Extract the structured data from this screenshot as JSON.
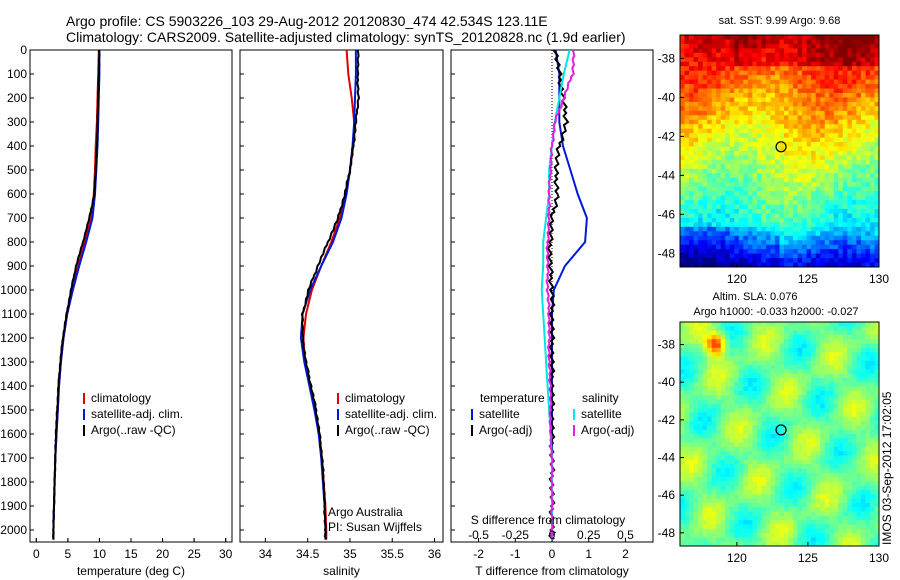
{
  "header": {
    "line1": "Argo profile: CS 5903226_103 29-Aug-2012 20120830_474 42.534S 123.11E",
    "line2": "Climatology: CARS2009. Satellite-adjusted climatology: synTS_20120828.nc (1.9d earlier)"
  },
  "credit": "IMOS 03-Sep-2012 17:02:05",
  "colors": {
    "climatology": "#e00000",
    "satellite": "#0018d8",
    "argo": "#000000",
    "sal_satellite": "#00e5e5",
    "sal_argo": "#e020e0"
  },
  "chart_data": [
    {
      "type": "line",
      "xlabel": "temperature (deg C)",
      "ylabel": "",
      "xlim": [
        -1,
        31
      ],
      "ylim": [
        2050,
        0
      ],
      "xticks": [
        0,
        5,
        10,
        15,
        20,
        25,
        30
      ],
      "yticks": [
        0,
        100,
        200,
        300,
        400,
        500,
        600,
        700,
        800,
        900,
        1000,
        1100,
        1200,
        1300,
        1400,
        1500,
        1600,
        1700,
        1800,
        1900,
        2000
      ],
      "legend": [
        "climatology",
        "satellite-adj. clim.",
        "Argo(..raw -QC)"
      ],
      "series": [
        {
          "name": "climatology",
          "depth": [
            0,
            100,
            200,
            300,
            400,
            500,
            600,
            700,
            800,
            900,
            1000,
            1100,
            1200,
            1300,
            1400,
            1500,
            1600,
            1700,
            1800,
            1900,
            2000,
            2040
          ],
          "values": [
            9.9,
            9.8,
            9.7,
            9.6,
            9.4,
            9.3,
            9.1,
            8.7,
            7.7,
            6.6,
            5.7,
            4.9,
            4.3,
            3.9,
            3.6,
            3.4,
            3.2,
            3.0,
            2.9,
            2.8,
            2.7,
            2.7
          ]
        },
        {
          "name": "satellite-adj. clim.",
          "depth": [
            0,
            100,
            200,
            300,
            400,
            500,
            600,
            700,
            800,
            900,
            1000,
            1100,
            1200,
            1300,
            1400,
            1500,
            1600,
            1700,
            1800,
            1900,
            2000,
            2040
          ],
          "values": [
            10.0,
            10.0,
            9.9,
            9.8,
            9.7,
            9.5,
            9.3,
            8.9,
            7.9,
            6.8,
            5.8,
            4.9,
            4.3,
            3.9,
            3.6,
            3.4,
            3.2,
            3.0,
            2.9,
            2.8,
            2.7,
            2.7
          ]
        },
        {
          "name": "Argo(..raw -QC)",
          "depth": [
            0,
            100,
            200,
            300,
            400,
            500,
            600,
            700,
            800,
            900,
            1000,
            1100,
            1200,
            1300,
            1400,
            1500,
            1600,
            1700,
            1800,
            1900,
            2000,
            2040
          ],
          "values": [
            10.0,
            9.9,
            9.8,
            9.7,
            9.6,
            9.4,
            9.2,
            8.4,
            7.4,
            6.3,
            5.5,
            4.8,
            4.2,
            3.8,
            3.5,
            3.3,
            3.1,
            3.0,
            2.9,
            2.8,
            2.7,
            2.7
          ]
        }
      ]
    },
    {
      "type": "line",
      "xlabel": "salinity",
      "ylabel": "",
      "xlim": [
        33.7,
        36.1
      ],
      "ylim": [
        2050,
        0
      ],
      "xticks": [
        34,
        34.5,
        35,
        35.5,
        36
      ],
      "legend": [
        "climatology",
        "satellite-adj. clim.",
        "Argo(..raw -QC)"
      ],
      "annotation": [
        "Argo Australia",
        "PI: Susan Wijffels"
      ],
      "series": [
        {
          "name": "climatology",
          "depth": [
            0,
            100,
            200,
            300,
            400,
            500,
            600,
            700,
            800,
            900,
            1000,
            1100,
            1200,
            1300,
            1400,
            1500,
            1600,
            1700,
            1800,
            1900,
            2000,
            2040
          ],
          "values": [
            34.96,
            34.98,
            35.02,
            35.05,
            35.04,
            35.0,
            34.95,
            34.88,
            34.78,
            34.66,
            34.55,
            34.48,
            34.45,
            34.47,
            34.53,
            34.59,
            34.64,
            34.67,
            34.69,
            34.71,
            34.72,
            34.72
          ]
        },
        {
          "name": "satellite-adj. clim.",
          "depth": [
            0,
            100,
            200,
            300,
            400,
            500,
            600,
            700,
            800,
            900,
            1000,
            1100,
            1200,
            1300,
            1400,
            1500,
            1600,
            1700,
            1800,
            1900,
            2000,
            2040
          ],
          "values": [
            35.07,
            35.07,
            35.06,
            35.05,
            35.03,
            35.0,
            34.96,
            34.9,
            34.8,
            34.66,
            34.53,
            34.44,
            34.42,
            34.46,
            34.52,
            34.58,
            34.63,
            34.66,
            34.68,
            34.7,
            34.71,
            34.71
          ]
        },
        {
          "name": "Argo(..raw -QC)",
          "depth": [
            0,
            100,
            200,
            300,
            400,
            500,
            600,
            700,
            800,
            900,
            1000,
            1100,
            1200,
            1300,
            1400,
            1500,
            1600,
            1700,
            1800,
            1900,
            2000,
            2040
          ],
          "values": [
            35.1,
            35.09,
            35.1,
            35.07,
            35.04,
            35.0,
            34.94,
            34.86,
            34.74,
            34.62,
            34.51,
            34.44,
            34.44,
            34.48,
            34.54,
            34.6,
            34.64,
            34.67,
            34.69,
            34.7,
            34.71,
            34.71
          ]
        }
      ]
    },
    {
      "type": "line",
      "xlabel": "T difference from climatology",
      "ylabel": "",
      "xlim": [
        -2.75,
        2.75
      ],
      "ylim": [
        2050,
        0
      ],
      "xticks": [
        -2,
        -1,
        0,
        1,
        2
      ],
      "secondary_axis": {
        "label": "S difference from climatology",
        "ticks": [
          -0.5,
          -0.25,
          0,
          0.25,
          0.5
        ]
      },
      "legend_groups": [
        {
          "title": "temperature",
          "entries": [
            "satellite",
            "Argo(-adj)"
          ]
        },
        {
          "title": "salinity",
          "entries": [
            "satellite",
            "Argo(-adj)"
          ]
        }
      ],
      "series": [
        {
          "name": "temperature satellite",
          "depth": [
            0,
            100,
            200,
            300,
            400,
            500,
            600,
            700,
            800,
            900,
            1000,
            1100,
            1200,
            1300,
            1400,
            1500,
            1600,
            1700,
            1800,
            1900,
            2000,
            2040
          ],
          "values": [
            0.1,
            0.2,
            0.2,
            0.2,
            0.3,
            0.5,
            0.7,
            0.95,
            0.9,
            0.35,
            0.05,
            0,
            0,
            0,
            0,
            0,
            0,
            0,
            0,
            0,
            0,
            0
          ]
        },
        {
          "name": "temperature Argo(-adj)",
          "depth": [
            0,
            100,
            200,
            300,
            400,
            500,
            600,
            700,
            800,
            900,
            1000,
            1100,
            1200,
            1300,
            1400,
            1500,
            1600,
            1700,
            1800,
            1900,
            2000,
            2040
          ],
          "values": [
            0.1,
            0.2,
            0.3,
            0.4,
            0.2,
            0.1,
            0.15,
            0.0,
            -0.05,
            -0.05,
            0,
            0,
            0,
            0,
            0,
            0,
            0,
            0,
            0,
            0,
            0,
            0
          ]
        },
        {
          "name": "salinity satellite",
          "depth": [
            0,
            100,
            200,
            300,
            400,
            500,
            600,
            700,
            800,
            900,
            1000,
            1100,
            1200,
            1300,
            1400,
            1500,
            1600,
            1700,
            1800,
            1900,
            2000,
            2040
          ],
          "values": [
            0.12,
            0.08,
            0.05,
            0.02,
            0,
            -0.02,
            -0.02,
            -0.04,
            -0.06,
            -0.06,
            -0.07,
            -0.06,
            -0.05,
            -0.04,
            -0.03,
            -0.02,
            -0.01,
            0,
            0,
            0,
            0,
            0
          ]
        },
        {
          "name": "salinity Argo(-adj)",
          "depth": [
            0,
            100,
            200,
            300,
            400,
            500,
            600,
            700,
            800,
            900,
            1000,
            1100,
            1200,
            1300,
            1400,
            1500,
            1600,
            1700,
            1800,
            1900,
            2000,
            2040
          ],
          "values": [
            0.15,
            0.14,
            0.08,
            0.02,
            0,
            -0.01,
            -0.02,
            -0.02,
            -0.03,
            -0.03,
            -0.03,
            -0.02,
            -0.02,
            -0.02,
            -0.01,
            -0.01,
            -0.01,
            0,
            0,
            0,
            0,
            0
          ]
        }
      ]
    },
    {
      "type": "heatmap",
      "title": "sat. SST: 9.99  Argo: 9.68",
      "xlim": [
        116,
        130
      ],
      "ylim": [
        -48.7,
        -36.8
      ],
      "xticks": [
        120,
        125,
        130
      ],
      "yticks": [
        -38,
        -40,
        -42,
        -44,
        -46,
        -48
      ],
      "marker": {
        "lon": 123.11,
        "lat": -42.534
      }
    },
    {
      "type": "heatmap",
      "title": [
        "Altim. SLA: 0.076",
        "Argo h1000: -0.033 h2000: -0.027"
      ],
      "xlim": [
        116,
        130
      ],
      "ylim": [
        -48.7,
        -36.8
      ],
      "xticks": [
        120,
        125,
        130
      ],
      "yticks": [
        -38,
        -40,
        -42,
        -44,
        -46,
        -48
      ],
      "marker": {
        "lon": 123.11,
        "lat": -42.534
      }
    }
  ]
}
